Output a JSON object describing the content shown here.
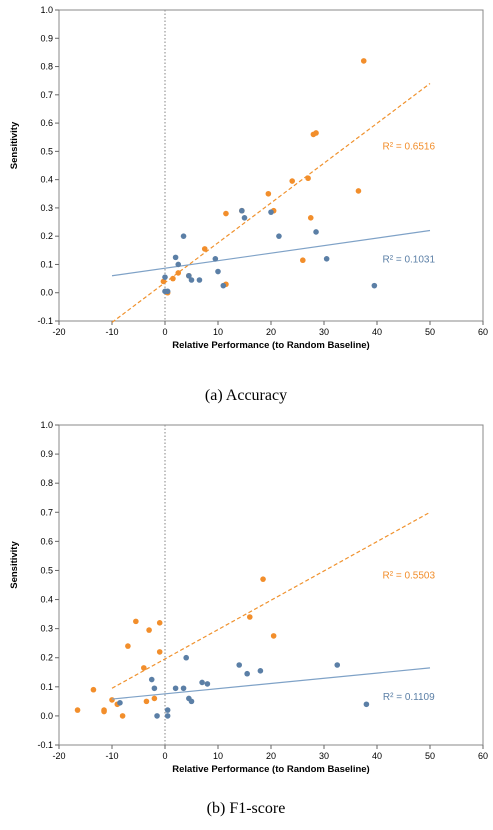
{
  "colors": {
    "orange": "#f28e2b",
    "blue": "#5b7fa6",
    "orange_line": "#f0922e",
    "blue_line": "#7fa2c7",
    "frame": "#888888",
    "grid_dotted": "#999999"
  },
  "chart_data": [
    {
      "type": "scatter",
      "caption": "(a) Accuracy",
      "xlabel": "Relative Performance (to Random Baseline)",
      "ylabel": "Sensitivity",
      "xlim": [
        -20,
        60
      ],
      "ylim": [
        -0.1,
        1.0
      ],
      "xticks": [
        -20,
        -10,
        0,
        10,
        20,
        30,
        40,
        50,
        60
      ],
      "yticks": [
        -0.1,
        0.0,
        0.1,
        0.2,
        0.3,
        0.4,
        0.5,
        0.6,
        0.7,
        0.8,
        0.9,
        1.0
      ],
      "vline_x": 0,
      "series": [
        {
          "color_key": "orange",
          "points": [
            [
              -0.3,
              0.04
            ],
            [
              0.5,
              0.0
            ],
            [
              1.5,
              0.05
            ],
            [
              2.5,
              0.07
            ],
            [
              4.5,
              0.06
            ],
            [
              7.5,
              0.155
            ],
            [
              11.5,
              0.03
            ],
            [
              11.5,
              0.28
            ],
            [
              14.5,
              0.29
            ],
            [
              19.5,
              0.35
            ],
            [
              20.5,
              0.29
            ],
            [
              24,
              0.395
            ],
            [
              26,
              0.115
            ],
            [
              27,
              0.405
            ],
            [
              27.5,
              0.265
            ],
            [
              28,
              0.56
            ],
            [
              28.5,
              0.565
            ],
            [
              36.5,
              0.36
            ],
            [
              37.5,
              0.82
            ]
          ],
          "fit": {
            "x0": -10,
            "y0": -0.105,
            "x1": 50,
            "y1": 0.74,
            "r2_label": "R² = 0.6516"
          }
        },
        {
          "color_key": "blue",
          "points": [
            [
              0,
              0.055
            ],
            [
              0,
              0.005
            ],
            [
              0.5,
              0.005
            ],
            [
              2,
              0.125
            ],
            [
              2.5,
              0.1
            ],
            [
              3.5,
              0.2
            ],
            [
              4.5,
              0.06
            ],
            [
              5,
              0.045
            ],
            [
              6.5,
              0.045
            ],
            [
              9.5,
              0.12
            ],
            [
              10,
              0.075
            ],
            [
              11,
              0.025
            ],
            [
              14.5,
              0.29
            ],
            [
              15,
              0.265
            ],
            [
              20,
              0.285
            ],
            [
              21.5,
              0.2
            ],
            [
              28.5,
              0.215
            ],
            [
              30.5,
              0.12
            ],
            [
              39.5,
              0.025
            ]
          ],
          "fit": {
            "x0": -10,
            "y0": 0.06,
            "x1": 50,
            "y1": 0.22,
            "r2_label": "R² = 0.1031"
          }
        }
      ]
    },
    {
      "type": "scatter",
      "caption": "(b) F1-score",
      "xlabel": "Relative Performance (to Random Baseline)",
      "ylabel": "Sensitivity",
      "xlim": [
        -20,
        60
      ],
      "ylim": [
        -0.1,
        1.0
      ],
      "xticks": [
        -20,
        -10,
        0,
        10,
        20,
        30,
        40,
        50,
        60
      ],
      "yticks": [
        -0.1,
        0.0,
        0.1,
        0.2,
        0.3,
        0.4,
        0.5,
        0.6,
        0.7,
        0.8,
        0.9,
        1.0
      ],
      "vline_x": 0,
      "series": [
        {
          "color_key": "orange",
          "points": [
            [
              -16.5,
              0.02
            ],
            [
              -13.5,
              0.09
            ],
            [
              -11.5,
              0.02
            ],
            [
              -11.5,
              0.015
            ],
            [
              -10,
              0.055
            ],
            [
              -9,
              0.04
            ],
            [
              -8,
              0.0
            ],
            [
              -7,
              0.24
            ],
            [
              -5.5,
              0.325
            ],
            [
              -4,
              0.165
            ],
            [
              -3.5,
              0.05
            ],
            [
              -3,
              0.295
            ],
            [
              -2,
              0.06
            ],
            [
              -1,
              0.32
            ],
            [
              -1,
              0.22
            ],
            [
              16,
              0.34
            ],
            [
              18.5,
              0.47
            ],
            [
              20.5,
              0.275
            ]
          ],
          "fit": {
            "x0": -10,
            "y0": 0.095,
            "x1": 50,
            "y1": 0.7,
            "r2_label": "R² = 0.5503"
          }
        },
        {
          "color_key": "blue",
          "points": [
            [
              -8.5,
              0.045
            ],
            [
              -2.5,
              0.125
            ],
            [
              -2,
              0.095
            ],
            [
              -1.5,
              0.0
            ],
            [
              0.5,
              0.0
            ],
            [
              0.5,
              0.02
            ],
            [
              2,
              0.095
            ],
            [
              3.5,
              0.095
            ],
            [
              4,
              0.2
            ],
            [
              4.5,
              0.06
            ],
            [
              5,
              0.05
            ],
            [
              7,
              0.115
            ],
            [
              8,
              0.11
            ],
            [
              14,
              0.175
            ],
            [
              15.5,
              0.145
            ],
            [
              18,
              0.155
            ],
            [
              32.5,
              0.175
            ],
            [
              38,
              0.04
            ]
          ],
          "fit": {
            "x0": -10,
            "y0": 0.058,
            "x1": 50,
            "y1": 0.165,
            "r2_label": "R² = 0.1109"
          }
        }
      ]
    }
  ]
}
